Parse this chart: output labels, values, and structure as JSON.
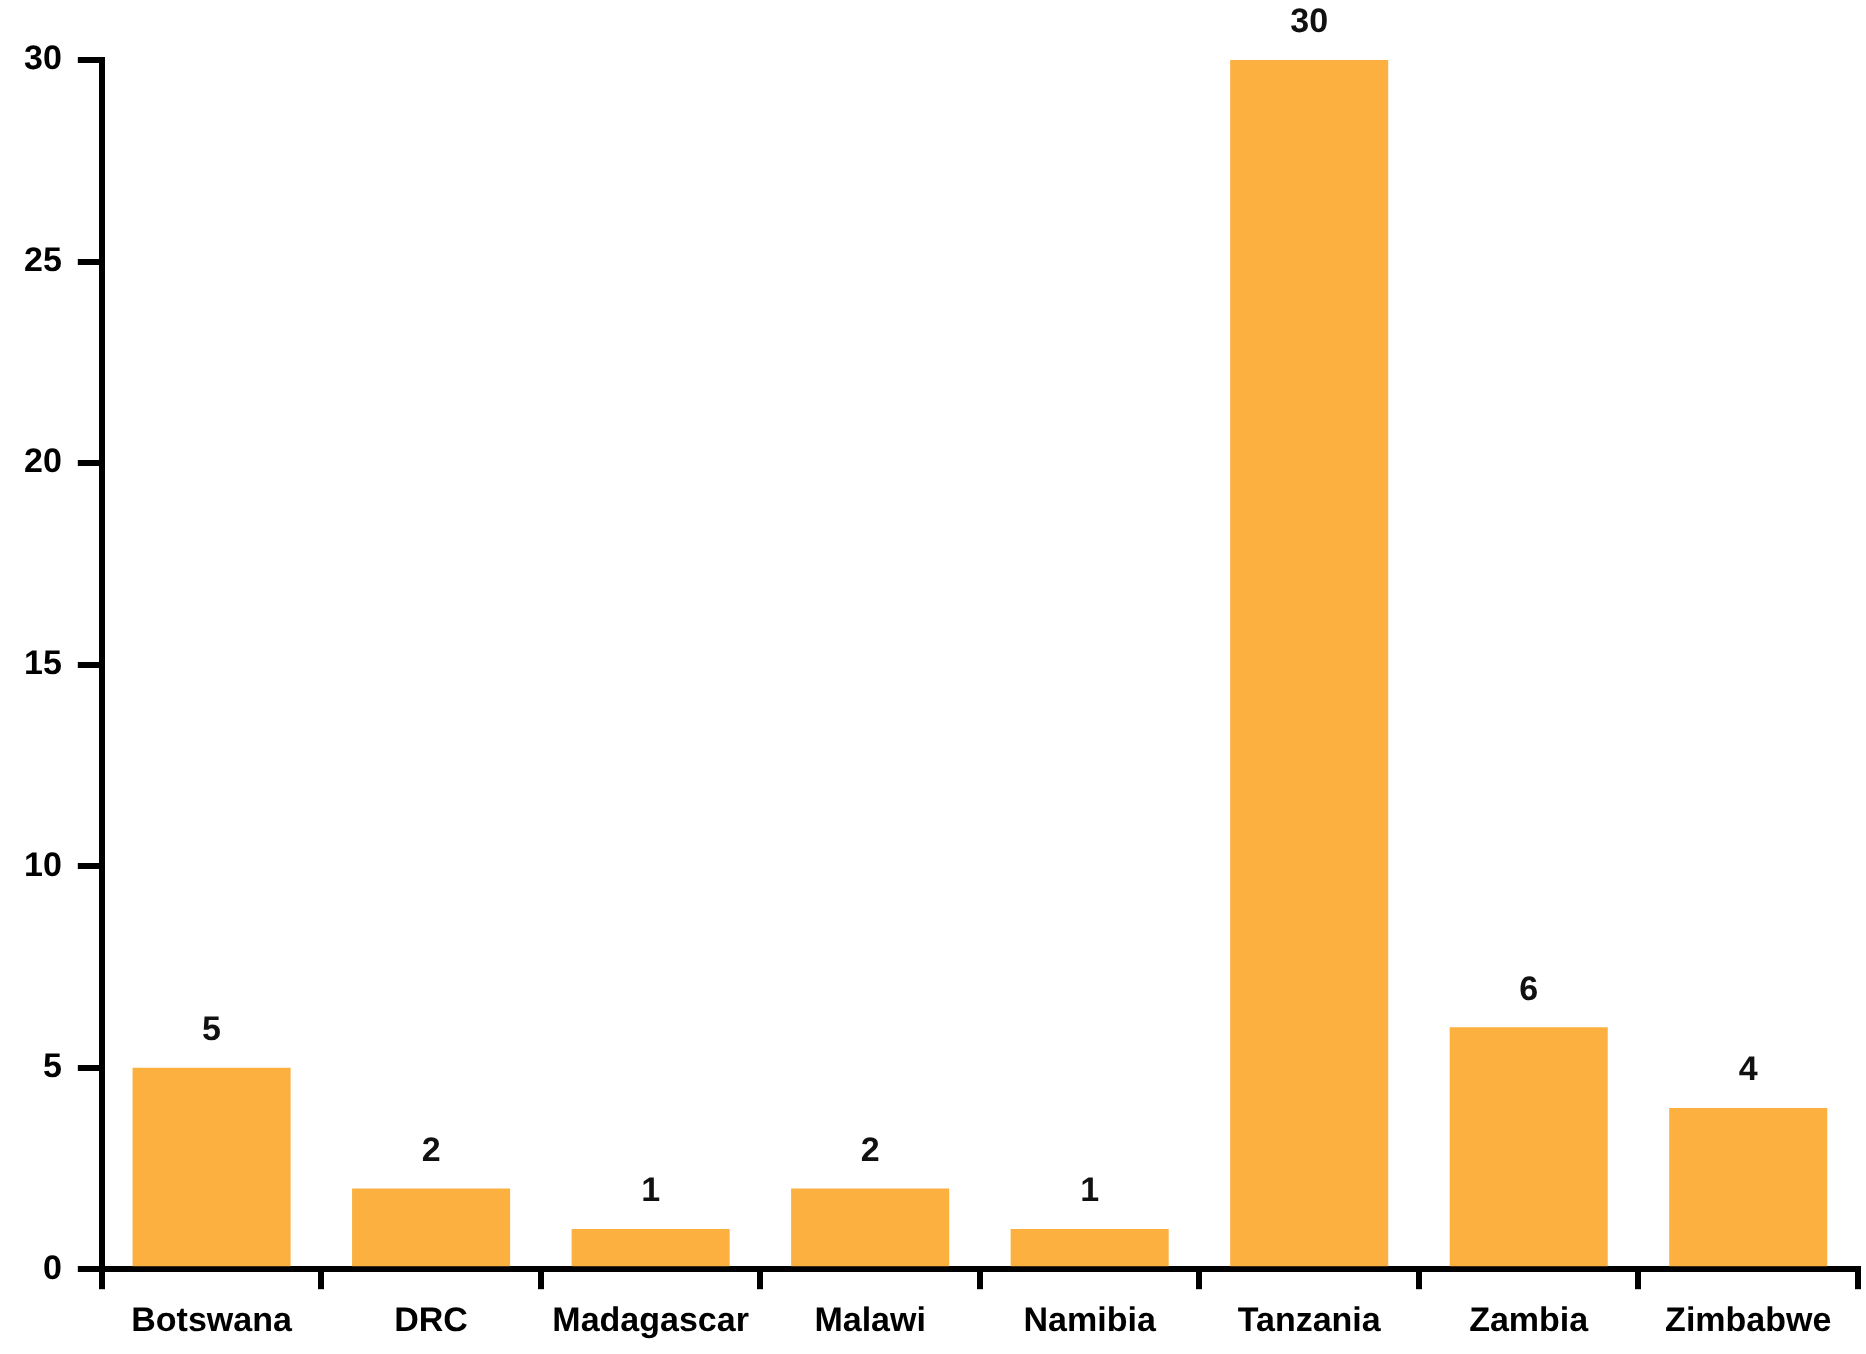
{
  "chart_data": {
    "type": "bar",
    "categories": [
      "Botswana",
      "DRC",
      "Madagascar",
      "Malawi",
      "Namibia",
      "Tanzania",
      "Zambia",
      "Zimbabwe"
    ],
    "values": [
      5,
      2,
      1,
      2,
      1,
      30,
      6,
      4
    ],
    "color": "#fbb040",
    "ylim": [
      0,
      30
    ],
    "yticks": [
      0,
      5,
      10,
      15,
      20,
      25,
      30
    ],
    "grid": false,
    "legend": false,
    "data_labels": true
  }
}
